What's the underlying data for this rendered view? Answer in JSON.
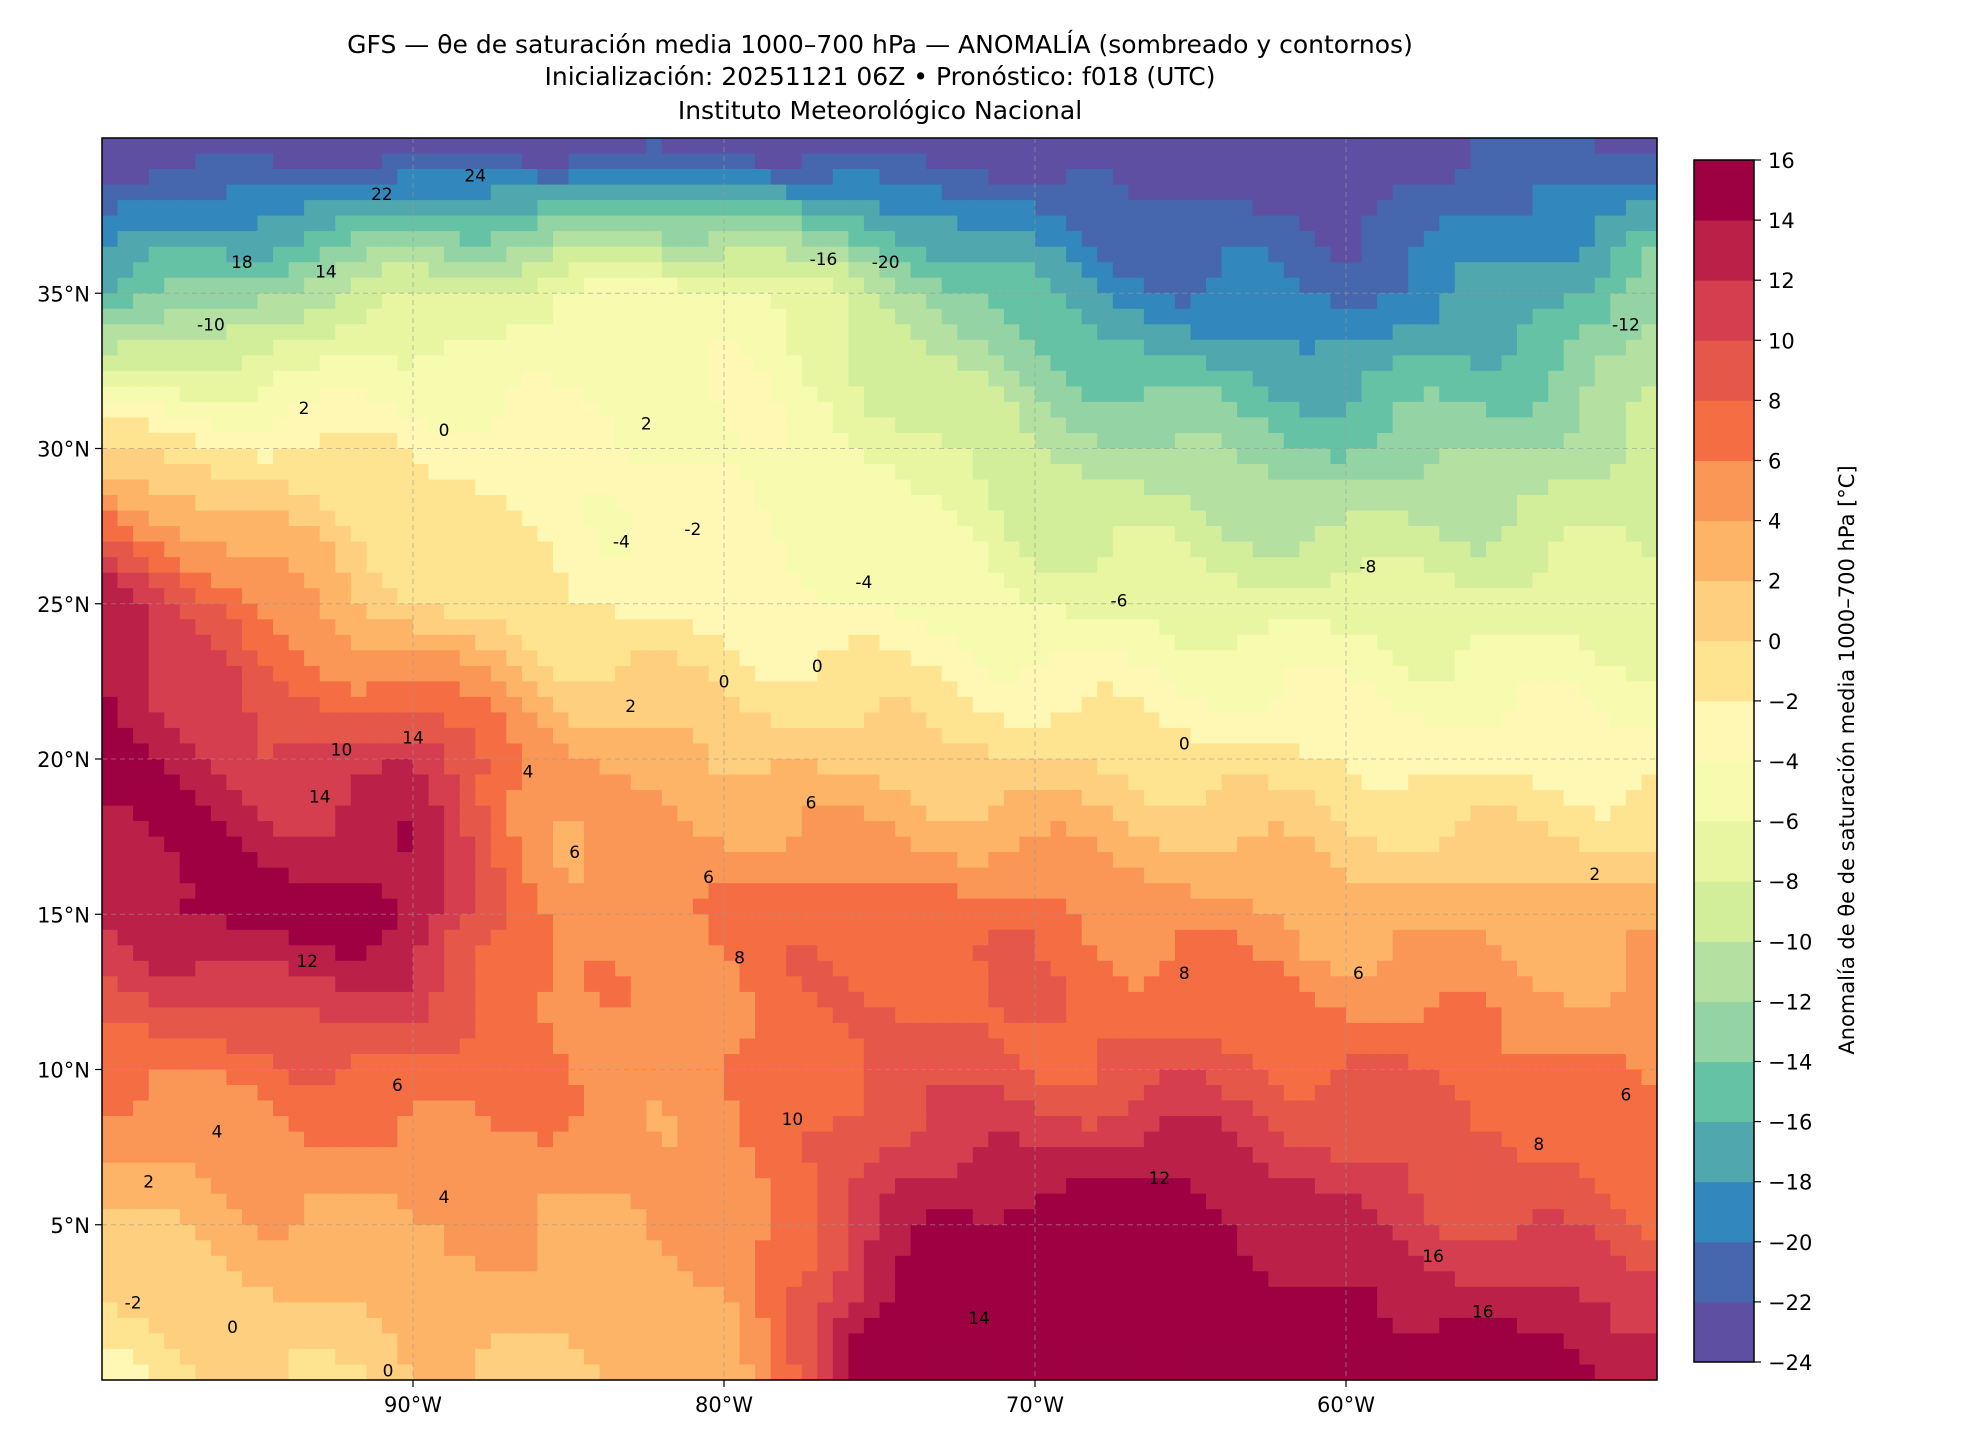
{
  "chart_data": {
    "type": "heatmap",
    "title": "GFS — θe de saturación media 1000–700 hPa — ANOMALÍA (sombreado y contornos)",
    "subtitle": "Inicialización: 20251121 06Z   •   Pronóstico: f018 (UTC)",
    "institution": "Instituto Meteorológico Nacional",
    "xlabel": "",
    "ylabel": "",
    "xlim": [
      -100,
      -50
    ],
    "ylim": [
      0,
      40
    ],
    "grid": true,
    "x_ticks": [
      {
        "value": -90,
        "label": "90°W"
      },
      {
        "value": -80,
        "label": "80°W"
      },
      {
        "value": -70,
        "label": "70°W"
      },
      {
        "value": -60,
        "label": "60°W"
      }
    ],
    "y_ticks": [
      {
        "value": 35,
        "label": "35°N"
      },
      {
        "value": 30,
        "label": "30°N"
      },
      {
        "value": 25,
        "label": "25°N"
      },
      {
        "value": 20,
        "label": "20°N"
      },
      {
        "value": 15,
        "label": "15°N"
      },
      {
        "value": 10,
        "label": "10°N"
      },
      {
        "value": 5,
        "label": "5°N"
      }
    ],
    "grid_lon": [
      -100,
      -95,
      -90,
      -85,
      -80,
      -75,
      -70,
      -65,
      -60,
      -55,
      -50
    ],
    "grid_lat": [
      40,
      35,
      30,
      25,
      20,
      15,
      10,
      5,
      0
    ],
    "values": [
      [
        -24,
        -24,
        -24,
        -24,
        -24,
        -24,
        -24,
        -24,
        -24,
        -22,
        -22
      ],
      [
        -16,
        -12,
        -8,
        -6,
        -4,
        -10,
        -16,
        -20,
        -20,
        -18,
        -12
      ],
      [
        0,
        -2,
        -2,
        -4,
        -4,
        -6,
        -10,
        -12,
        -14,
        -12,
        -10
      ],
      [
        14,
        6,
        0,
        -2,
        -3,
        -4,
        -6,
        -7,
        -7,
        -7,
        -7
      ],
      [
        16,
        10,
        12,
        4,
        2,
        1,
        0,
        -1,
        -2,
        -3,
        -3
      ],
      [
        12,
        16,
        14,
        4,
        7,
        7,
        7,
        5,
        3,
        3,
        3
      ],
      [
        6,
        7,
        8,
        6,
        5,
        9,
        8,
        9,
        8,
        7,
        5
      ],
      [
        2,
        3,
        4,
        4,
        4,
        12,
        16,
        16,
        12,
        10,
        8
      ],
      [
        -2,
        0,
        1,
        2,
        3,
        16,
        16,
        16,
        16,
        16,
        14
      ]
    ],
    "contour_labels": [
      {
        "lon": -91,
        "lat": 38.2,
        "text": "22"
      },
      {
        "lon": -88,
        "lat": 38.8,
        "text": "24"
      },
      {
        "lon": -95.5,
        "lat": 36,
        "text": "18"
      },
      {
        "lon": -92.8,
        "lat": 35.7,
        "text": "14"
      },
      {
        "lon": -96.5,
        "lat": 34,
        "text": "-10"
      },
      {
        "lon": -76.8,
        "lat": 36.1,
        "text": "-16"
      },
      {
        "lon": -74.8,
        "lat": 36,
        "text": "-20"
      },
      {
        "lon": -51,
        "lat": 34,
        "text": "-12"
      },
      {
        "lon": -93.5,
        "lat": 31.3,
        "text": "2"
      },
      {
        "lon": -89,
        "lat": 30.6,
        "text": "0"
      },
      {
        "lon": -82.5,
        "lat": 30.8,
        "text": "2"
      },
      {
        "lon": -83.3,
        "lat": 27,
        "text": "-4"
      },
      {
        "lon": -81,
        "lat": 27.4,
        "text": "-2"
      },
      {
        "lon": -75.5,
        "lat": 25.7,
        "text": "-4"
      },
      {
        "lon": -67.3,
        "lat": 25.1,
        "text": "-6"
      },
      {
        "lon": -59.3,
        "lat": 26.2,
        "text": "-8"
      },
      {
        "lon": -77,
        "lat": 23,
        "text": "0"
      },
      {
        "lon": -83,
        "lat": 21.7,
        "text": "2"
      },
      {
        "lon": -80,
        "lat": 22.5,
        "text": "0"
      },
      {
        "lon": -65.2,
        "lat": 20.5,
        "text": "0"
      },
      {
        "lon": -92.3,
        "lat": 20.3,
        "text": "10"
      },
      {
        "lon": -90,
        "lat": 20.7,
        "text": "14"
      },
      {
        "lon": -93,
        "lat": 18.8,
        "text": "14"
      },
      {
        "lon": -86.3,
        "lat": 19.6,
        "text": "4"
      },
      {
        "lon": -77.2,
        "lat": 18.6,
        "text": "6"
      },
      {
        "lon": -84.8,
        "lat": 17,
        "text": "6"
      },
      {
        "lon": -80.5,
        "lat": 16.2,
        "text": "6"
      },
      {
        "lon": -52,
        "lat": 16.3,
        "text": "2"
      },
      {
        "lon": -93.4,
        "lat": 13.5,
        "text": "12"
      },
      {
        "lon": -79.5,
        "lat": 13.6,
        "text": "8"
      },
      {
        "lon": -65.2,
        "lat": 13.1,
        "text": "8"
      },
      {
        "lon": -59.6,
        "lat": 13.1,
        "text": "6"
      },
      {
        "lon": -90.5,
        "lat": 9.5,
        "text": "6"
      },
      {
        "lon": -96.3,
        "lat": 8,
        "text": "4"
      },
      {
        "lon": -98.5,
        "lat": 6.4,
        "text": "2"
      },
      {
        "lon": -89,
        "lat": 5.9,
        "text": "4"
      },
      {
        "lon": -77.8,
        "lat": 8.4,
        "text": "10"
      },
      {
        "lon": -66,
        "lat": 6.5,
        "text": "12"
      },
      {
        "lon": -53.8,
        "lat": 7.6,
        "text": "8"
      },
      {
        "lon": -51,
        "lat": 9.2,
        "text": "6"
      },
      {
        "lon": -57.2,
        "lat": 4,
        "text": "16"
      },
      {
        "lon": -55.6,
        "lat": 2.2,
        "text": "16"
      },
      {
        "lon": -71.8,
        "lat": 2,
        "text": "14"
      },
      {
        "lon": -99,
        "lat": 2.5,
        "text": "-2"
      },
      {
        "lon": -95.8,
        "lat": 1.7,
        "text": "0"
      },
      {
        "lon": -90.8,
        "lat": 0.3,
        "text": "0"
      }
    ],
    "colorbar": {
      "label": "Anomalía de θe de saturación media 1000–700 hPa [°C]",
      "levels": [
        -24,
        -22,
        -20,
        -18,
        -16,
        -14,
        -12,
        -10,
        -8,
        -6,
        -4,
        -2,
        0,
        2,
        4,
        6,
        8,
        10,
        12,
        14,
        16
      ],
      "tick_labels": [
        "−24",
        "−22",
        "−20",
        "−18",
        "−16",
        "−14",
        "−12",
        "−10",
        "−8",
        "−6",
        "−4",
        "−2",
        "0",
        "2",
        "4",
        "6",
        "8",
        "10",
        "12",
        "14",
        "16"
      ],
      "colors": [
        "#5e4fa2",
        "#4666ad",
        "#3288bd",
        "#50a7ae",
        "#66c2a5",
        "#93d3a4",
        "#b4e0a2",
        "#d3ee9b",
        "#e9f6a1",
        "#f6fbb0",
        "#fef8b4",
        "#fee491",
        "#fdcf7e",
        "#fdb466",
        "#fa9656",
        "#f46d43",
        "#e55749",
        "#d53e4f",
        "#bb2049",
        "#9e0142"
      ]
    }
  }
}
